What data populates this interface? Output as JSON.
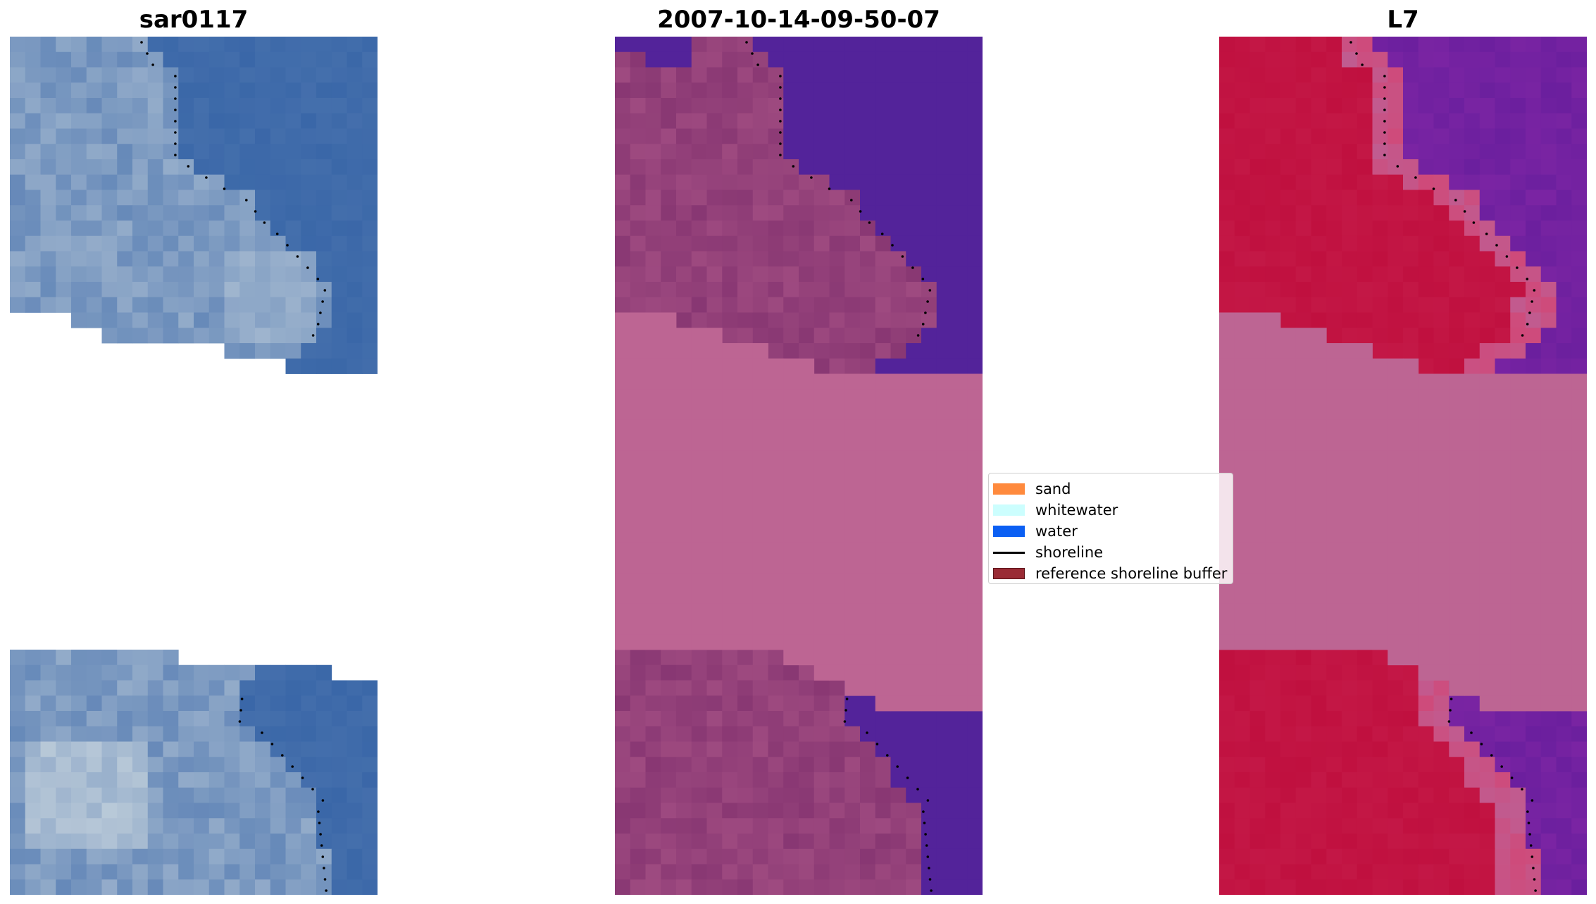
{
  "panels": [
    {
      "title": "sar0117"
    },
    {
      "title": "2007-10-14-09-50-07"
    },
    {
      "title": "L7"
    }
  ],
  "legend": {
    "items": [
      {
        "label": "sand",
        "type": "patch",
        "color": "#ff8a3d"
      },
      {
        "label": "whitewater",
        "type": "patch",
        "color": "#ccfefe"
      },
      {
        "label": "water",
        "type": "patch",
        "color": "#0b5ff3"
      },
      {
        "label": "shoreline",
        "type": "line",
        "color": "#000000"
      },
      {
        "label": "reference shoreline buffer",
        "type": "patch",
        "color": "#9a2b35"
      }
    ]
  },
  "colors": {
    "rgb_water": "#3a67a8",
    "rgb_light": "#b9c9d8",
    "class_water": "#53239a",
    "class_land": "#7f2f6d",
    "buffer_overlay": "#bd6593",
    "mndwi_land": "#c0103f",
    "mndwi_water": "#6b1f9e"
  }
}
